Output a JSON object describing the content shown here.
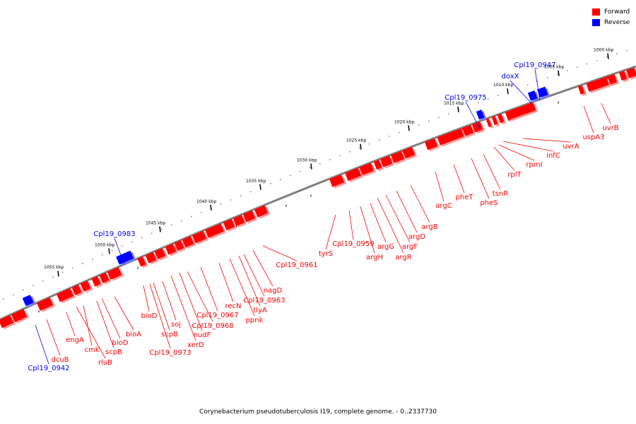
{
  "colors": {
    "forward": "#ff0000",
    "reverse": "#0000ff",
    "backbone": "#808080"
  },
  "legend": {
    "forward_label": "Forward",
    "reverse_label": "Reverse"
  },
  "caption": "Corynebacterium pseudotuberculosis I19, complete genome. - 0..2337730",
  "ticks": [
    {
      "label": "1000 kbp"
    },
    {
      "label": "1005 kbp"
    },
    {
      "label": "1010 kbp"
    },
    {
      "label": "1015 kbp"
    },
    {
      "label": "1020 kbp"
    },
    {
      "label": "1025 kbp"
    },
    {
      "label": "1030 kbp"
    },
    {
      "label": "1035 kbp"
    },
    {
      "label": "1040 kbp"
    },
    {
      "label": "1045 kbp"
    },
    {
      "label": "1050 kbp"
    },
    {
      "label": "1055 kbp"
    }
  ],
  "genes": [
    {
      "name": "uvrB",
      "strand": "forward"
    },
    {
      "name": "uspA3",
      "strand": "forward"
    },
    {
      "name": "uvrA",
      "strand": "forward"
    },
    {
      "name": "infC",
      "strand": "forward"
    },
    {
      "name": "rpmI",
      "strand": "forward"
    },
    {
      "name": "rplT",
      "strand": "forward"
    },
    {
      "name": "tsnR",
      "strand": "forward"
    },
    {
      "name": "pheS",
      "strand": "forward"
    },
    {
      "name": "pheT",
      "strand": "forward"
    },
    {
      "name": "argC",
      "strand": "forward"
    },
    {
      "name": "argB",
      "strand": "forward"
    },
    {
      "name": "argD",
      "strand": "forward"
    },
    {
      "name": "argF",
      "strand": "forward"
    },
    {
      "name": "argR",
      "strand": "forward"
    },
    {
      "name": "argG",
      "strand": "forward"
    },
    {
      "name": "argH",
      "strand": "forward"
    },
    {
      "name": "Cpl19_0959",
      "strand": "forward"
    },
    {
      "name": "tyrS",
      "strand": "forward"
    },
    {
      "name": "Cpl19_0961",
      "strand": "forward"
    },
    {
      "name": "nagD",
      "strand": "forward"
    },
    {
      "name": "Cpl19_0963",
      "strand": "forward"
    },
    {
      "name": "tlyA",
      "strand": "forward"
    },
    {
      "name": "ppnk",
      "strand": "forward"
    },
    {
      "name": "recN",
      "strand": "forward"
    },
    {
      "name": "Cpl19_0967",
      "strand": "forward"
    },
    {
      "name": "Cpl19_0968",
      "strand": "forward"
    },
    {
      "name": "nudF",
      "strand": "forward"
    },
    {
      "name": "xerD",
      "strand": "forward"
    },
    {
      "name": "soj",
      "strand": "forward"
    },
    {
      "name": "scpB",
      "strand": "forward"
    },
    {
      "name": "Cpl19_0973",
      "strand": "forward"
    },
    {
      "name": "bioD",
      "strand": "forward"
    },
    {
      "name": "bioA",
      "strand": "forward"
    },
    {
      "name": "bioD",
      "strand": "forward"
    },
    {
      "name": "scpB",
      "strand": "forward"
    },
    {
      "name": "cmk",
      "strand": "forward"
    },
    {
      "name": "rluB",
      "strand": "forward"
    },
    {
      "name": "engA",
      "strand": "forward"
    },
    {
      "name": "dcuB",
      "strand": "forward"
    },
    {
      "name": "Cpl19_0942",
      "strand": "reverse"
    },
    {
      "name": "doxX",
      "strand": "reverse"
    },
    {
      "name": "Cpl19_0947",
      "strand": "reverse"
    },
    {
      "name": "Cpl19_0975",
      "strand": "reverse"
    },
    {
      "name": "Cpl19_0983",
      "strand": "reverse"
    }
  ]
}
